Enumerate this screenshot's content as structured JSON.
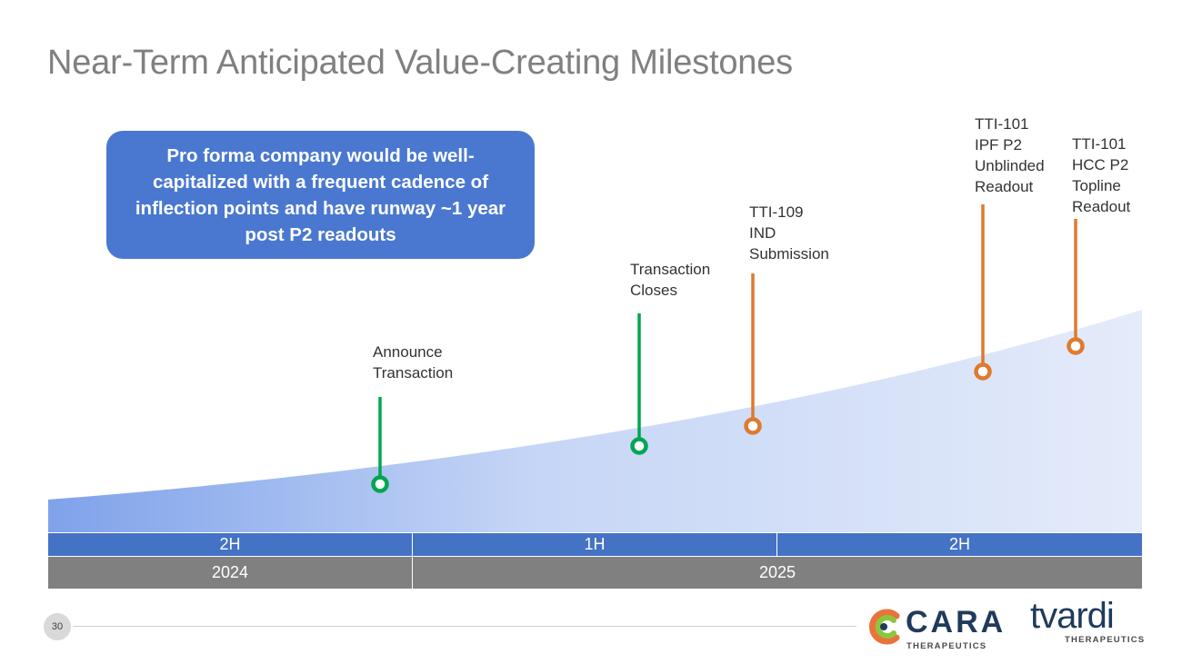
{
  "title": "Near-Term Anticipated Value-Creating Milestones",
  "callout": {
    "text": "Pro forma company would be well-capitalized with a frequent cadence of inflection points and have runway ~1 year post P2 readouts"
  },
  "colors": {
    "transaction": "#00a651",
    "clinical": "#e07a2e",
    "callout": "#4a78d0",
    "half_bar": "#4472c4",
    "year_bar": "#808080"
  },
  "milestones": [
    {
      "label_lines": [
        "Announce",
        "Transaction"
      ],
      "category": "transaction"
    },
    {
      "label_lines": [
        "Transaction",
        "Closes"
      ],
      "category": "transaction"
    },
    {
      "label_lines": [
        "TTI-109",
        "IND",
        "Submission"
      ],
      "category": "clinical"
    },
    {
      "label_lines": [
        "TTI-101",
        "IPF P2",
        "Unblinded",
        "Readout"
      ],
      "category": "clinical"
    },
    {
      "label_lines": [
        "TTI-101",
        "HCC P2",
        "Topline",
        "Readout"
      ],
      "category": "clinical"
    }
  ],
  "periods": {
    "halves": [
      "2H",
      "1H",
      "2H"
    ],
    "years": [
      "2024",
      "2025"
    ]
  },
  "page_number": "30",
  "logos": {
    "cara": {
      "name": "CARA",
      "sub": "THERAPEUTICS"
    },
    "tvardi": {
      "name": "tvardi",
      "sub": "THERAPEUTICS"
    }
  }
}
